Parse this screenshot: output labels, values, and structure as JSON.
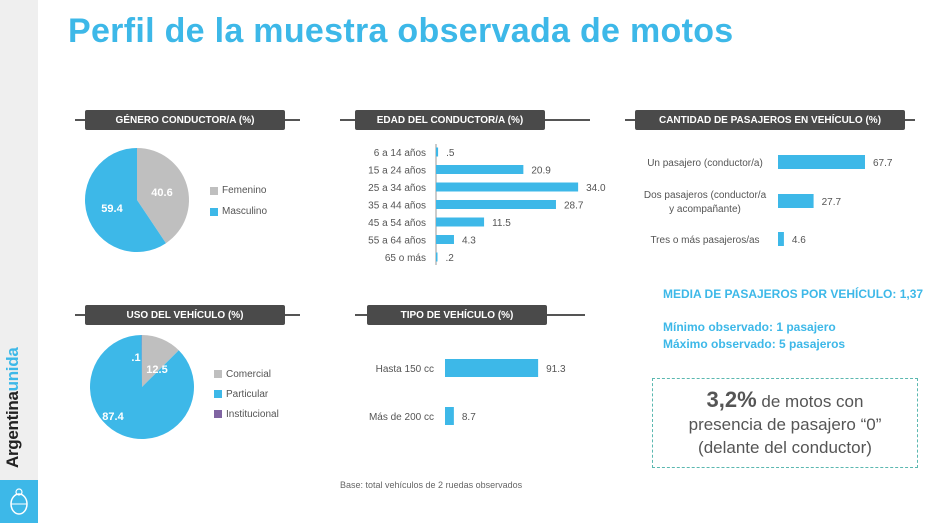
{
  "title": "Perfil de la muestra observada de motos",
  "logo": {
    "text_1": "Argentina",
    "text_2": "unida"
  },
  "colors": {
    "accent": "#3db8e8",
    "gray": "#bfbfbf",
    "purple": "#8064a2",
    "header_bg": "#4a4a4a"
  },
  "chart_data": [
    {
      "type": "pie",
      "title": "GÉNERO CONDUCTOR/A  (%)",
      "categories": [
        "Femenino",
        "Masculino"
      ],
      "values": [
        40.6,
        59.4
      ],
      "labels": [
        "40.6",
        "59.4"
      ],
      "colors": [
        "#bfbfbf",
        "#3db8e8"
      ],
      "legend": "right"
    },
    {
      "type": "bar",
      "orientation": "horizontal",
      "title": "EDAD DEL CONDUCTOR/A (%)",
      "categories": [
        "6 a 14 años",
        "15 a 24 años",
        "25 a 34 años",
        "35 a 44 años",
        "45 a 54 años",
        "55 a 64 años",
        "65 o más"
      ],
      "values": [
        0.5,
        20.9,
        34.0,
        28.7,
        11.5,
        4.3,
        0.2
      ],
      "labels": [
        ".5",
        "20.9",
        "34.0",
        "28.7",
        "11.5",
        "4.3",
        ".2"
      ]
    },
    {
      "type": "bar",
      "orientation": "horizontal",
      "title": "CANTIDAD DE PASAJEROS EN VEHÍCULO (%)",
      "categories": [
        "Un pasajero (conductor/a)",
        "Dos pasajeros (conductor/a y acompañante)",
        "Tres o más pasajeros/as"
      ],
      "values": [
        67.7,
        27.7,
        4.6
      ],
      "labels": [
        "67.7",
        "27.7",
        "4.6"
      ]
    },
    {
      "type": "pie",
      "title": "USO DEL VEHÍCULO (%)",
      "categories": [
        "Comercial",
        "Particular",
        "Institucional"
      ],
      "values": [
        12.5,
        87.4,
        0.1
      ],
      "labels": [
        "12.5",
        "87.4",
        ".1"
      ],
      "colors": [
        "#bfbfbf",
        "#3db8e8",
        "#8064a2"
      ],
      "legend": "right"
    },
    {
      "type": "bar",
      "orientation": "horizontal",
      "title": "TIPO DE VEHÍCULO (%)",
      "categories": [
        "Hasta 150 cc",
        "Más de 200 cc"
      ],
      "values": [
        91.3,
        8.7
      ],
      "labels": [
        "91.3",
        "8.7"
      ]
    }
  ],
  "notes": {
    "media": "MEDIA DE PASAJEROS POR VEHÍCULO: 1,37",
    "minimo": "Mínimo observado: 1 pasajero",
    "maximo": "Máximo observado:  5 pasajeros"
  },
  "callout": {
    "value": "3,2%",
    "text_1": " de motos con",
    "text_2": "presencia de pasajero “0”",
    "text_3": "(delante del conductor)"
  },
  "base": "Base: total vehículos de 2 ruedas observados"
}
